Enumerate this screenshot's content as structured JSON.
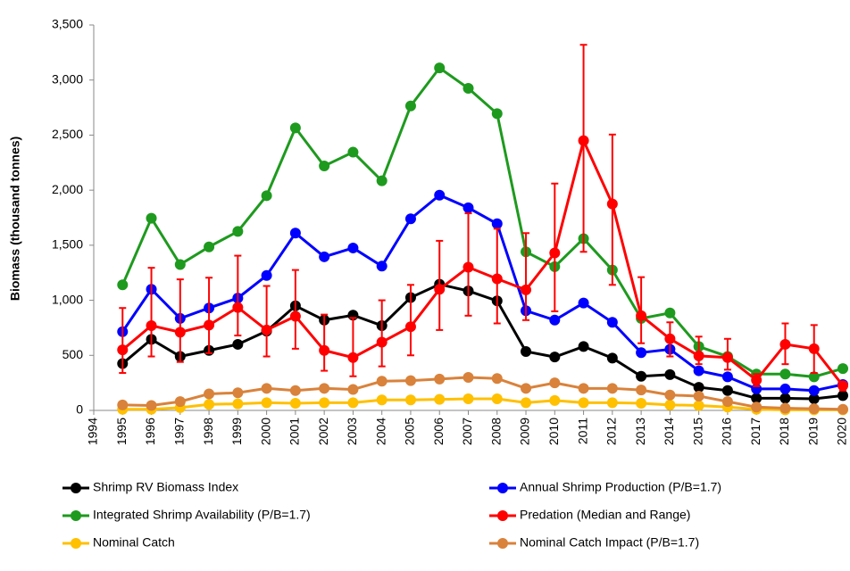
{
  "chart_data": {
    "type": "line",
    "y_label": "Biomass (thousand tonnes)",
    "xlim": [
      1994,
      2020
    ],
    "xticks": [
      1994,
      1995,
      1996,
      1997,
      1998,
      1999,
      2000,
      2001,
      2002,
      2003,
      2004,
      2005,
      2006,
      2007,
      2008,
      2009,
      2010,
      2011,
      2012,
      2013,
      2014,
      2015,
      2016,
      2017,
      2018,
      2019,
      2020
    ],
    "ylim": [
      0,
      3500
    ],
    "yticks": [
      0,
      500,
      {
        "value": 1000,
        "label": "1,000"
      },
      {
        "value": 1500,
        "label": "1,500"
      },
      {
        "value": 2000,
        "label": "2,000"
      },
      {
        "value": 2500,
        "label": "2,500"
      },
      {
        "value": 3000,
        "label": "3,000"
      },
      {
        "value": 3500,
        "label": "3,500"
      }
    ],
    "grid": false,
    "x": [
      1995,
      1996,
      1997,
      1998,
      1999,
      2000,
      2001,
      2002,
      2003,
      2004,
      2005,
      2006,
      2007,
      2008,
      2009,
      2010,
      2011,
      2012,
      2013,
      2014,
      2015,
      2016,
      2017,
      2018,
      2019,
      2020
    ],
    "series": [
      {
        "name": "Shrimp RV Biomass Index",
        "color": "#000000",
        "values": [
          425,
          645,
          490,
          545,
          600,
          720,
          950,
          820,
          865,
          770,
          1025,
          1145,
          1085,
          995,
          535,
          485,
          580,
          475,
          310,
          325,
          210,
          180,
          110,
          110,
          105,
          135
        ]
      },
      {
        "name": "Annual Shrimp Production (P/B=1.7)",
        "color": "#0000ff",
        "values": [
          715,
          1100,
          835,
          930,
          1020,
          1225,
          1610,
          1395,
          1475,
          1310,
          1740,
          1955,
          1840,
          1695,
          905,
          820,
          975,
          800,
          525,
          555,
          360,
          305,
          195,
          195,
          180,
          235
        ]
      },
      {
        "name": "Integrated Shrimp Availability (P/B=1.7)",
        "color": "#1e9a1e",
        "values": [
          1140,
          1745,
          1325,
          1485,
          1625,
          1950,
          2565,
          2220,
          2345,
          2085,
          2765,
          3110,
          2925,
          2695,
          1440,
          1305,
          1560,
          1275,
          835,
          885,
          580,
          490,
          330,
          330,
          305,
          380
        ]
      },
      {
        "name": "Predation (Median and Range)",
        "color": "#ff0000",
        "values": [
          550,
          770,
          710,
          775,
          935,
          730,
          855,
          545,
          480,
          620,
          760,
          1100,
          1300,
          1195,
          1095,
          1430,
          2450,
          1875,
          860,
          650,
          495,
          480,
          275,
          600,
          560,
          225
        ],
        "low": [
          340,
          490,
          440,
          520,
          680,
          490,
          560,
          360,
          310,
          400,
          500,
          730,
          860,
          790,
          820,
          900,
          1440,
          1140,
          610,
          490,
          420,
          370,
          220,
          420,
          340,
          180
        ],
        "high": [
          930,
          1295,
          1190,
          1205,
          1405,
          1130,
          1275,
          870,
          840,
          1000,
          1140,
          1540,
          1790,
          1650,
          1610,
          2060,
          3320,
          2505,
          1210,
          800,
          670,
          650,
          330,
          790,
          775,
          260
        ]
      },
      {
        "name": "Nominal Catch",
        "color": "#ffc000",
        "values": [
          10,
          10,
          25,
          55,
          60,
          70,
          65,
          70,
          70,
          95,
          95,
          100,
          105,
          105,
          70,
          90,
          70,
          70,
          65,
          50,
          45,
          30,
          10,
          5,
          5,
          5
        ]
      },
      {
        "name": "Nominal Catch Impact (P/B=1.7)",
        "color": "#d9823b",
        "values": [
          50,
          45,
          80,
          150,
          160,
          200,
          180,
          200,
          190,
          265,
          270,
          285,
          300,
          290,
          200,
          250,
          200,
          200,
          185,
          140,
          130,
          80,
          30,
          20,
          15,
          10
        ]
      }
    ]
  }
}
